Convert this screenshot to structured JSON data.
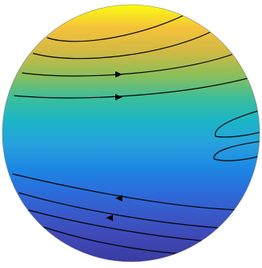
{
  "figure": {
    "colormap": "parula",
    "gradient_stops": [
      "#F9FB0E",
      "#F5C23A",
      "#D2B944",
      "#8DBE59",
      "#3BBE9B",
      "#1BB5C8",
      "#27A0DD",
      "#1C87E3",
      "#2B6DDB",
      "#3958C8",
      "#3F47B5",
      "#3A3BA0"
    ],
    "outline_color": "#808080",
    "line_color": "#000000",
    "level_count": 10,
    "arrow_count": 4
  }
}
